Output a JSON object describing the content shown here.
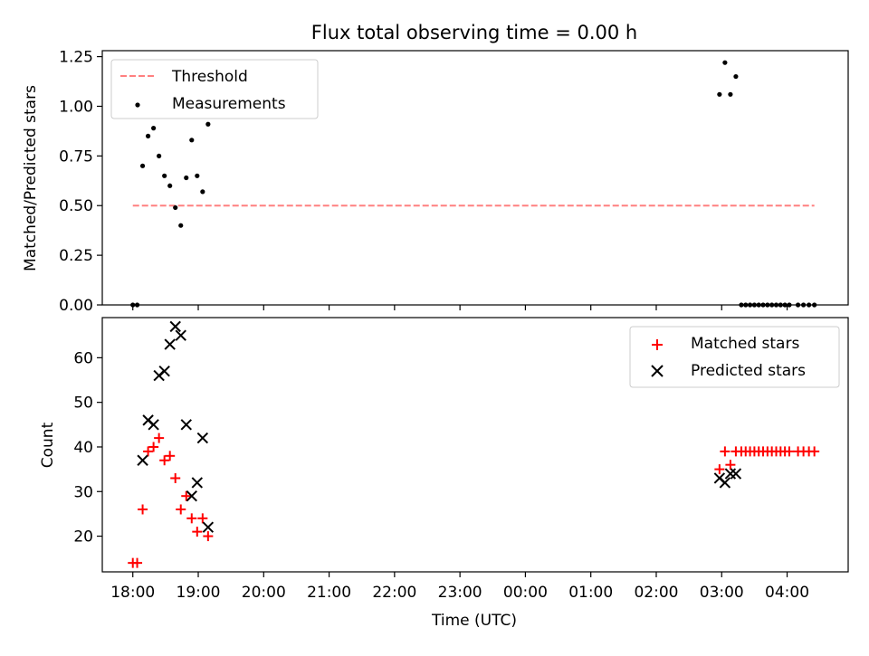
{
  "colors": {
    "threshold": "#ff8080",
    "measurements": "#000000",
    "matched": "#ff0000",
    "predicted": "#000000",
    "axes": "#000000",
    "legend_border": "#cccccc"
  },
  "chart_data": [
    {
      "type": "scatter",
      "title": "Flux total observing time = 0.00 h",
      "xlabel": "",
      "ylabel": "Matched/Predicted stars",
      "xlim": [
        "17:32",
        "04:56"
      ],
      "ylim": [
        0,
        1.28
      ],
      "yticks": [
        0,
        0.25,
        0.5,
        0.75,
        1.0,
        1.25
      ],
      "ytick_labels": [
        "0.00",
        "0.25",
        "0.50",
        "0.75",
        "1.00",
        "1.25"
      ],
      "legend_position": "upper left",
      "grid": false,
      "series": [
        {
          "name": "Threshold",
          "style": "dashed-line",
          "points": [
            [
              "18:00",
              0.5
            ],
            [
              "04:25",
              0.5
            ]
          ]
        },
        {
          "name": "Measurements",
          "style": "dot",
          "points": [
            [
              "18:00",
              0.0
            ],
            [
              "18:04",
              0.0
            ],
            [
              "18:09",
              0.7
            ],
            [
              "18:14",
              0.85
            ],
            [
              "18:19",
              0.89
            ],
            [
              "18:24",
              0.75
            ],
            [
              "18:29",
              0.65
            ],
            [
              "18:34",
              0.6
            ],
            [
              "18:39",
              0.49
            ],
            [
              "18:44",
              0.4
            ],
            [
              "18:49",
              0.64
            ],
            [
              "18:54",
              0.83
            ],
            [
              "18:59",
              0.65
            ],
            [
              "19:04",
              0.57
            ],
            [
              "19:09",
              0.91
            ],
            [
              "02:58",
              1.06
            ],
            [
              "03:03",
              1.22
            ],
            [
              "03:08",
              1.06
            ],
            [
              "03:13",
              1.15
            ],
            [
              "03:18",
              0.0
            ],
            [
              "03:22",
              0.0
            ],
            [
              "03:26",
              0.0
            ],
            [
              "03:30",
              0.0
            ],
            [
              "03:34",
              0.0
            ],
            [
              "03:38",
              0.0
            ],
            [
              "03:42",
              0.0
            ],
            [
              "03:46",
              0.0
            ],
            [
              "03:50",
              0.0
            ],
            [
              "03:54",
              0.0
            ],
            [
              "03:58",
              0.0
            ],
            [
              "04:02",
              0.0
            ],
            [
              "04:10",
              0.0
            ],
            [
              "04:15",
              0.0
            ],
            [
              "04:20",
              0.0
            ],
            [
              "04:25",
              0.0
            ]
          ]
        }
      ]
    },
    {
      "type": "scatter",
      "title": "",
      "xlabel": "Time (UTC)",
      "ylabel": "Count",
      "xlim": [
        "17:32",
        "04:56"
      ],
      "ylim": [
        12,
        69
      ],
      "yticks": [
        20,
        30,
        40,
        50,
        60
      ],
      "ytick_labels": [
        "20",
        "30",
        "40",
        "50",
        "60"
      ],
      "xticks": [
        "18:00",
        "19:00",
        "20:00",
        "21:00",
        "22:00",
        "23:00",
        "00:00",
        "01:00",
        "02:00",
        "03:00",
        "04:00"
      ],
      "xtick_labels": [
        "18:00",
        "19:00",
        "20:00",
        "21:00",
        "22:00",
        "23:00",
        "00:00",
        "01:00",
        "02:00",
        "03:00",
        "04:00"
      ],
      "legend_position": "upper right",
      "grid": false,
      "series": [
        {
          "name": "Matched stars",
          "style": "plus",
          "points": [
            [
              "18:00",
              14
            ],
            [
              "18:04",
              14
            ],
            [
              "18:09",
              26
            ],
            [
              "18:14",
              39
            ],
            [
              "18:19",
              40
            ],
            [
              "18:24",
              42
            ],
            [
              "18:29",
              37
            ],
            [
              "18:34",
              38
            ],
            [
              "18:39",
              33
            ],
            [
              "18:44",
              26
            ],
            [
              "18:49",
              29
            ],
            [
              "18:54",
              24
            ],
            [
              "18:59",
              21
            ],
            [
              "19:04",
              24
            ],
            [
              "19:09",
              20
            ],
            [
              "02:58",
              35
            ],
            [
              "03:03",
              39
            ],
            [
              "03:08",
              36
            ],
            [
              "03:13",
              39
            ],
            [
              "03:18",
              39
            ],
            [
              "03:22",
              39
            ],
            [
              "03:26",
              39
            ],
            [
              "03:30",
              39
            ],
            [
              "03:34",
              39
            ],
            [
              "03:38",
              39
            ],
            [
              "03:42",
              39
            ],
            [
              "03:46",
              39
            ],
            [
              "03:50",
              39
            ],
            [
              "03:54",
              39
            ],
            [
              "03:58",
              39
            ],
            [
              "04:02",
              39
            ],
            [
              "04:10",
              39
            ],
            [
              "04:15",
              39
            ],
            [
              "04:20",
              39
            ],
            [
              "04:25",
              39
            ]
          ]
        },
        {
          "name": "Predicted stars",
          "style": "x",
          "points": [
            [
              "18:09",
              37
            ],
            [
              "18:14",
              46
            ],
            [
              "18:19",
              45
            ],
            [
              "18:24",
              56
            ],
            [
              "18:29",
              57
            ],
            [
              "18:34",
              63
            ],
            [
              "18:39",
              67
            ],
            [
              "18:44",
              65
            ],
            [
              "18:49",
              45
            ],
            [
              "18:54",
              29
            ],
            [
              "18:59",
              32
            ],
            [
              "19:04",
              42
            ],
            [
              "19:09",
              22
            ],
            [
              "02:58",
              33
            ],
            [
              "03:03",
              32
            ],
            [
              "03:08",
              34
            ],
            [
              "03:13",
              34
            ]
          ]
        }
      ]
    }
  ]
}
